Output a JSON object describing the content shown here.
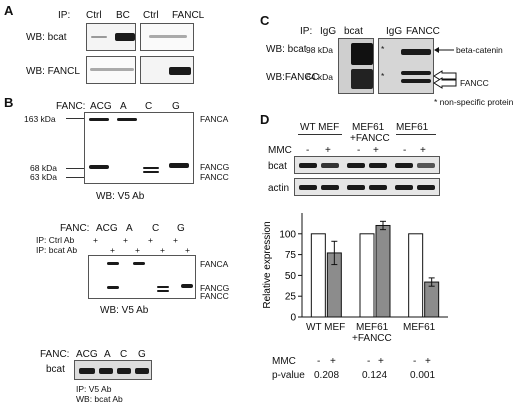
{
  "panelA": {
    "label": "A",
    "ip_label": "IP:",
    "lanes": [
      "Ctrl",
      "BC",
      "Ctrl",
      "FANCL"
    ],
    "rows": [
      "WB: bcat",
      "WB: FANCL"
    ]
  },
  "panelB": {
    "label": "B",
    "fanc_label": "FANC:",
    "lanes": [
      "ACG",
      "A",
      "C",
      "G"
    ],
    "mw": [
      "163 kDa",
      "68 kDa",
      "63 kDa"
    ],
    "bands": [
      "FANCA",
      "FANCG",
      "FANCC"
    ],
    "caption": "WB: V5 Ab",
    "sub2": {
      "fanc_label": "FANC:",
      "lanes": [
        "ACG",
        "A",
        "C",
        "G"
      ],
      "ip_ctrl": "IP: Ctrl Ab",
      "ip_bcat": "IP: bcat Ab",
      "plus": "+",
      "bands": [
        "FANCA",
        "FANCG",
        "FANCC"
      ],
      "caption": "WB: V5 Ab"
    },
    "sub3": {
      "fanc_label": "FANC:",
      "lanes": [
        "ACG",
        "A",
        "C",
        "G"
      ],
      "row": "bcat",
      "caption1": "IP: V5 Ab",
      "caption2": "WB: bcat Ab"
    }
  },
  "panelC": {
    "label": "C",
    "ip_label": "IP:",
    "lanes": [
      "IgG",
      "bcat",
      "IgG",
      "FANCC"
    ],
    "rows": [
      "WB: bcat",
      "WB:FANCC"
    ],
    "mw": [
      "98 kDa",
      "64 kDa"
    ],
    "arrows": [
      "beta-catenin",
      "FANCC"
    ],
    "star": "*",
    "note": "* non-specific protein"
  },
  "panelD": {
    "label": "D",
    "groups": [
      "WT MEF",
      "MEF61\n+FANCC",
      "MEF61"
    ],
    "group_lines": [
      [
        "WT MEF"
      ],
      [
        "MEF61",
        "+FANCC"
      ],
      [
        "MEF61"
      ]
    ],
    "mmc_label": "MMC",
    "mmc_signs": [
      "-",
      "+",
      "-",
      "+",
      "-",
      "+"
    ],
    "rows": [
      "bcat",
      "actin"
    ],
    "pvalue_label": "p-value",
    "pvalues": [
      "0.208",
      "0.124",
      "0.001"
    ]
  },
  "chart_data": {
    "type": "bar",
    "categories": [
      "WT MEF",
      "MEF61 +FANCC",
      "MEF61"
    ],
    "series": [
      {
        "name": "-",
        "values": [
          100,
          100,
          100
        ],
        "color": "#ffffff"
      },
      {
        "name": "+",
        "values": [
          77,
          110,
          42
        ],
        "errors": [
          14,
          5,
          5
        ],
        "color": "#8c8c8c"
      }
    ],
    "ylabel": "Relative expression",
    "yticks": [
      0,
      25,
      50,
      75,
      100
    ],
    "ylim": [
      0,
      125
    ]
  }
}
